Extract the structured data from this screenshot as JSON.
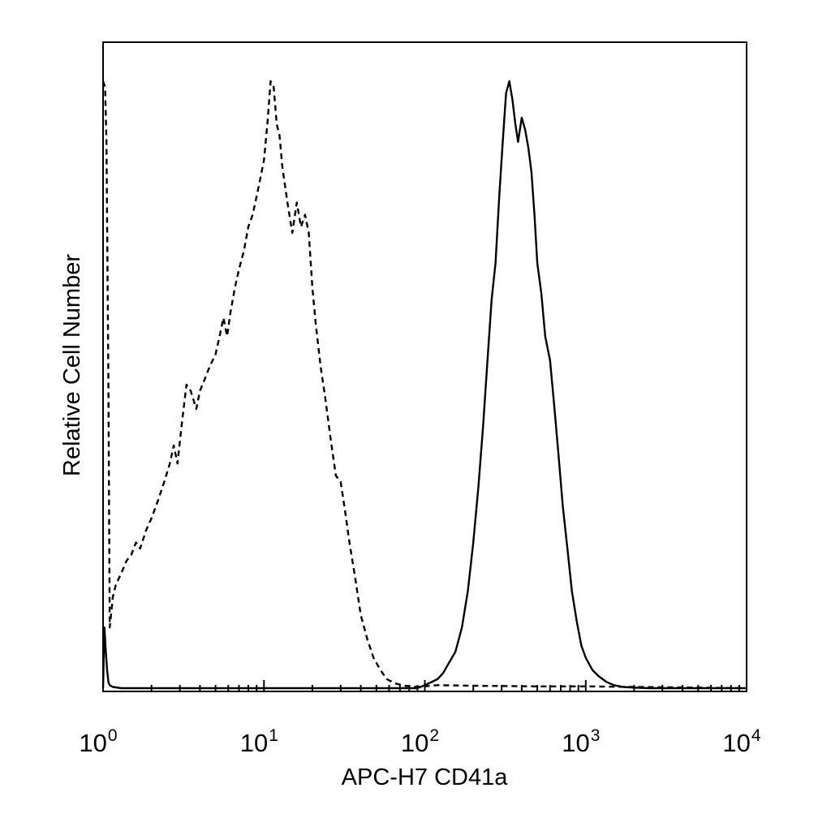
{
  "chart_data": {
    "type": "line",
    "title": "",
    "xlabel": "APC-H7 CD41a",
    "ylabel": "Relative Cell Number",
    "x_scale": "log",
    "xlim": [
      1,
      10000
    ],
    "ylim": [
      0,
      100
    ],
    "grid": false,
    "legend": "none",
    "x_tick_labels": [
      {
        "value": 1,
        "base": "10",
        "exp": "0"
      },
      {
        "value": 10,
        "base": "10",
        "exp": "1"
      },
      {
        "value": 100,
        "base": "10",
        "exp": "2"
      },
      {
        "value": 1000,
        "base": "10",
        "exp": "3"
      },
      {
        "value": 10000,
        "base": "10",
        "exp": "4"
      }
    ],
    "series": [
      {
        "style": "dashed",
        "color": "#000000",
        "x": [
          1.0,
          1.03,
          1.05,
          1.08,
          1.1,
          1.12,
          1.15,
          1.2,
          1.3,
          1.4,
          1.5,
          1.6,
          1.7,
          1.85,
          2.0,
          2.2,
          2.4,
          2.6,
          2.75,
          2.9,
          3.1,
          3.3,
          3.5,
          3.8,
          4.0,
          4.3,
          4.6,
          5.0,
          5.3,
          5.6,
          5.9,
          6.2,
          6.6,
          7.0,
          7.5,
          8.0,
          8.5,
          9.0,
          9.5,
          10.0,
          10.5,
          11.0,
          11.5,
          12.0,
          12.5,
          13.0,
          14.0,
          15.0,
          16.0,
          17.0,
          18.0,
          19.0,
          20.0,
          21.0,
          22.5,
          24.0,
          26.0,
          28.0,
          30.0,
          32.0,
          34.0,
          37.0,
          40.0,
          44.0,
          48.0,
          53.0,
          58.0,
          65.0,
          75.0,
          90.0,
          120.0,
          200.0,
          500.0,
          1000.0,
          2000.0,
          5000.0,
          10000.0
        ],
        "y": [
          100,
          99,
          90,
          50,
          10,
          12,
          15,
          17,
          19,
          21,
          22,
          24,
          23,
          26,
          28,
          31,
          34,
          37,
          40,
          37,
          44,
          50,
          49,
          46,
          49,
          51,
          53,
          55,
          58,
          61,
          58,
          62,
          66,
          69,
          72,
          76,
          78,
          81,
          84,
          87,
          93,
          100,
          99,
          93,
          91,
          86,
          80,
          75,
          80,
          76,
          78,
          75,
          66,
          60,
          53,
          48,
          41,
          35,
          34,
          29,
          24,
          18,
          12,
          8,
          5,
          3,
          1.5,
          0.8,
          0.4,
          0.2,
          0.5,
          0.4,
          0.3,
          0.3,
          0.2,
          0.1,
          0
        ]
      },
      {
        "style": "solid",
        "color": "#000000",
        "x": [
          1.0,
          1.02,
          1.04,
          1.06,
          1.08,
          1.1,
          1.15,
          1.3,
          2.0,
          10.0,
          50.0,
          90.0,
          100.0,
          110.0,
          120.0,
          130.0,
          140.0,
          155.0,
          170.0,
          185.0,
          200.0,
          215.0,
          230.0,
          245.0,
          260.0,
          275.0,
          290.0,
          305.0,
          320.0,
          335.0,
          350.0,
          365.0,
          380.0,
          400.0,
          420.0,
          440.0,
          460.0,
          480.0,
          500.0,
          530.0,
          560.0,
          600.0,
          640.0,
          680.0,
          720.0,
          770.0,
          820.0,
          880.0,
          940.0,
          1000.0,
          1100.0,
          1200.0,
          1350.0,
          1500.0,
          1700.0,
          2000.0,
          2500.0,
          10000.0
        ],
        "y": [
          0,
          10,
          6,
          3,
          1,
          0.5,
          0.2,
          0,
          0,
          0,
          0,
          0,
          0.5,
          1,
          1.5,
          2.5,
          4,
          6,
          10,
          16,
          24,
          33,
          43,
          54,
          64,
          70,
          81,
          90,
          98,
          100,
          97,
          93,
          90,
          94,
          92,
          89,
          85,
          78,
          70,
          65,
          58,
          54,
          46,
          38,
          30,
          23,
          16,
          11,
          7,
          5,
          3,
          2,
          1,
          0.5,
          0.2,
          0.1,
          0,
          0
        ]
      }
    ]
  }
}
